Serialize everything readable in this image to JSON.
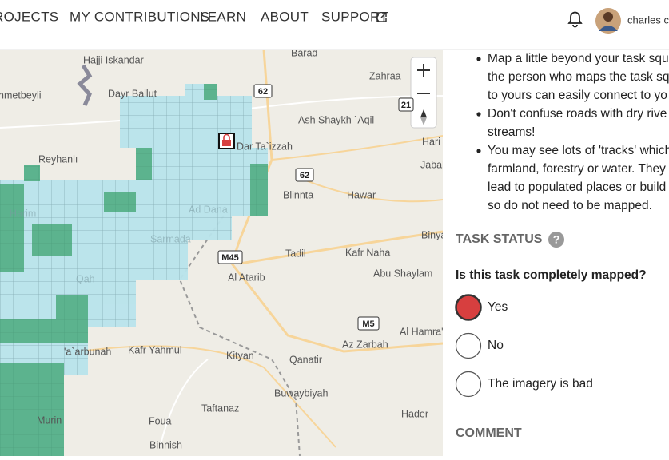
{
  "nav": {
    "items": [
      "ROJECTS",
      "MY CONTRIBUTIONS",
      "LEARN",
      "ABOUT",
      "SUPPORT"
    ],
    "user": "charles c"
  },
  "map": {
    "labels": [
      "Hajji Iskandar",
      "Barad",
      "Zahraa",
      "nmetbeyli",
      "Dayr Ballut",
      "Ash Shaykh `Aqil",
      "Hari",
      "Dar Ta`izzah",
      "Reyhanlı",
      "Jabal",
      "Blinnta",
      "Hawar",
      "Ad Dana",
      "Binya",
      "Harim",
      "Sarmada",
      "Tadil",
      "Kafr Naha",
      "Abu Shaylam",
      "Al Atarib",
      "Qah",
      "Al Hamra'",
      "Az Zarbah",
      "'a`arbunah",
      "Kafr Yahmul",
      "Kityan",
      "Qanatir",
      "Buwaybiyah",
      "Taftanaz",
      "Hader",
      "Foua",
      "Murin",
      "Binnish"
    ],
    "shields": [
      "62",
      "21",
      "62",
      "M45",
      "M5"
    ]
  },
  "instructions": [
    {
      "lines": [
        "Map a little beyond your task squ",
        "the person who maps the task sq",
        "to yours can easily connect to yo"
      ]
    },
    {
      "lines": [
        "Don't confuse roads with dry rive",
        "streams!"
      ]
    },
    {
      "lines": [
        "You may see lots of 'tracks' which",
        "farmland, forestry or water. They",
        "lead to populated places or build",
        "so do not need to be mapped."
      ]
    }
  ],
  "task_status": {
    "heading": "TASK STATUS",
    "question": "Is this task completely mapped?",
    "options": [
      "Yes",
      "No",
      "The imagery is bad"
    ]
  },
  "comment": {
    "heading": "COMMENT"
  }
}
